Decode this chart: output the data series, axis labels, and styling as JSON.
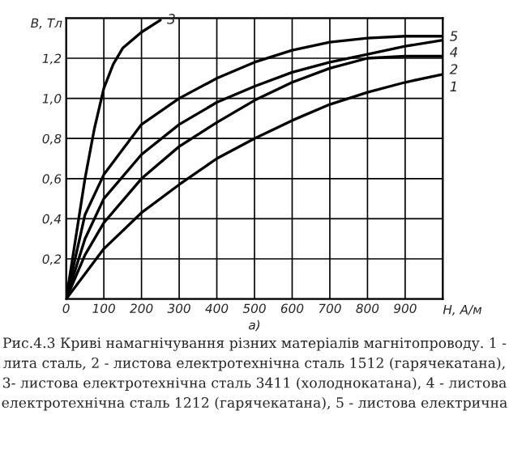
{
  "chart_data": {
    "type": "line",
    "xlabel": "H, А/м",
    "ylabel": "B, Тл",
    "xlim": [
      0,
      1000
    ],
    "ylim": [
      0,
      1.4
    ],
    "xticks": [
      {
        "value": 0,
        "label": "0"
      },
      100,
      200,
      300,
      400,
      500,
      600,
      700,
      800,
      900,
      {
        "value": 1000,
        "label": null
      }
    ],
    "yticks": [
      {
        "value": 0,
        "label": null
      },
      {
        "value": 0.2,
        "label": "0,2"
      },
      {
        "value": 0.4,
        "label": "0,4"
      },
      {
        "value": 0.6,
        "label": "0,6"
      },
      {
        "value": 0.8,
        "label": "0,8"
      },
      {
        "value": 1.0,
        "label": "1,0"
      },
      {
        "value": 1.2,
        "label": "1,2"
      },
      {
        "value": 1.4,
        "label": null
      }
    ],
    "grid": true,
    "legend": false,
    "marker": "none",
    "line_style": "solid",
    "series": [
      {
        "name": "3",
        "color": "#000000",
        "x": [
          0,
          25,
          50,
          75,
          100,
          125,
          150,
          200,
          250
        ],
        "values": [
          0,
          0.3,
          0.6,
          0.85,
          1.05,
          1.17,
          1.25,
          1.33,
          1.39
        ]
      },
      {
        "name": "5",
        "color": "#000000",
        "x": [
          0,
          50,
          100,
          200,
          300,
          400,
          500,
          600,
          700,
          800,
          900,
          1000
        ],
        "values": [
          0,
          0.42,
          0.62,
          0.87,
          1.0,
          1.1,
          1.18,
          1.24,
          1.28,
          1.3,
          1.31,
          1.31
        ]
      },
      {
        "name": "4",
        "color": "#000000",
        "x": [
          0,
          50,
          100,
          200,
          300,
          400,
          500,
          600,
          700,
          800,
          900,
          1000
        ],
        "values": [
          0,
          0.3,
          0.5,
          0.72,
          0.87,
          0.98,
          1.06,
          1.13,
          1.18,
          1.22,
          1.26,
          1.29
        ]
      },
      {
        "name": "2",
        "color": "#000000",
        "x": [
          0,
          50,
          100,
          200,
          300,
          400,
          500,
          600,
          700,
          800,
          900,
          1000
        ],
        "values": [
          0,
          0.22,
          0.38,
          0.6,
          0.76,
          0.88,
          0.99,
          1.08,
          1.15,
          1.2,
          1.21,
          1.21
        ]
      },
      {
        "name": "1",
        "color": "#000000",
        "x": [
          0,
          100,
          200,
          300,
          400,
          500,
          600,
          700,
          800,
          900,
          1000
        ],
        "values": [
          0,
          0.25,
          0.43,
          0.57,
          0.7,
          0.8,
          0.89,
          0.97,
          1.03,
          1.08,
          1.12
        ]
      }
    ],
    "annotations": [
      "а)",
      "Рис.4.3 Криві намагнічування різних матеріалів магнітопроводу. 1 - лита сталь, 2 - листова електротехнічна сталь 1512 (гарячекатана), 3- листова електротехнічна сталь 3411 (холоднокатана), 4 - листова електротехнічна сталь 1212 (гарячекатана), 5 - листова електрична"
    ]
  }
}
